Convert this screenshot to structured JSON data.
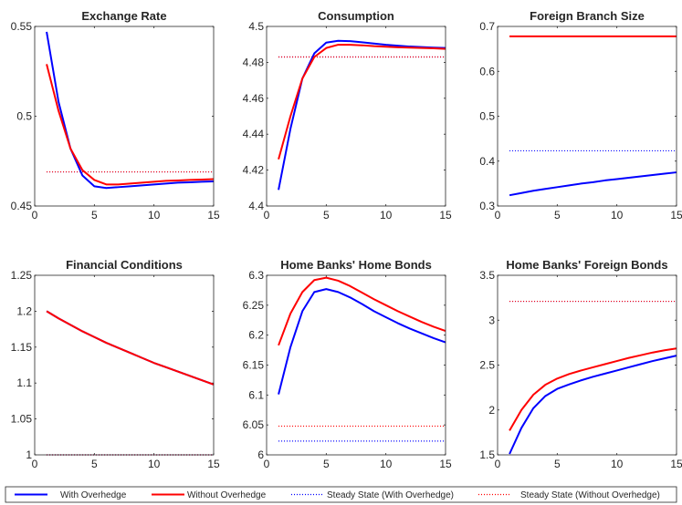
{
  "legend": {
    "entries": [
      {
        "label": "With Overhedge",
        "color": "#0000ff",
        "style": "solid"
      },
      {
        "label": "Without Overhedge",
        "color": "#ff0000",
        "style": "solid"
      },
      {
        "label": "Steady State (With Overhedge)",
        "color": "#0000ff",
        "style": "dotted"
      },
      {
        "label": "Steady State (Without Overhedge)",
        "color": "#ff0000",
        "style": "dotted"
      }
    ]
  },
  "chart_data": [
    {
      "type": "line",
      "title": "Exchange Rate",
      "xlim": [
        0,
        15
      ],
      "ylim": [
        0.45,
        0.55
      ],
      "xticks": [
        0,
        5,
        10,
        15
      ],
      "xtick_labels": [
        "0",
        "5",
        "10",
        "15"
      ],
      "yticks": [
        0.45,
        0.5,
        0.55
      ],
      "ytick_labels": [
        "0.45",
        "0.5",
        "0.55"
      ],
      "x": [
        1,
        2,
        3,
        4,
        5,
        6,
        7,
        8,
        9,
        10,
        11,
        12,
        13,
        14,
        15
      ],
      "series": [
        {
          "name": "With Overhedge",
          "color": "#0000ff",
          "style": "solid",
          "values": [
            0.547,
            0.508,
            0.482,
            0.467,
            0.461,
            0.46,
            0.4605,
            0.461,
            0.4615,
            0.462,
            0.4625,
            0.463,
            0.4632,
            0.4635,
            0.4637
          ]
        },
        {
          "name": "Without Overhedge",
          "color": "#ff0000",
          "style": "solid",
          "values": [
            0.529,
            0.503,
            0.482,
            0.47,
            0.4645,
            0.462,
            0.462,
            0.4625,
            0.463,
            0.4635,
            0.464,
            0.4642,
            0.4645,
            0.4647,
            0.465
          ]
        },
        {
          "name": "Steady State (With Overhedge)",
          "color": "#0000ff",
          "style": "dotted",
          "constant": 0.469
        },
        {
          "name": "Steady State (Without Overhedge)",
          "color": "#ff0000",
          "style": "dotted",
          "constant": 0.469
        }
      ]
    },
    {
      "type": "line",
      "title": "Consumption",
      "xlim": [
        0,
        15
      ],
      "ylim": [
        4.4,
        4.5
      ],
      "xticks": [
        0,
        5,
        10,
        15
      ],
      "xtick_labels": [
        "0",
        "5",
        "10",
        "15"
      ],
      "yticks": [
        4.4,
        4.42,
        4.44,
        4.46,
        4.48,
        4.5
      ],
      "ytick_labels": [
        "4.4",
        "4.42",
        "4.44",
        "4.46",
        "4.48",
        "4.5"
      ],
      "x": [
        1,
        2,
        3,
        4,
        5,
        6,
        7,
        8,
        9,
        10,
        11,
        12,
        13,
        14,
        15
      ],
      "series": [
        {
          "name": "With Overhedge",
          "color": "#0000ff",
          "style": "solid",
          "values": [
            4.409,
            4.443,
            4.471,
            4.485,
            4.491,
            4.492,
            4.4918,
            4.4912,
            4.4905,
            4.4898,
            4.4893,
            4.4888,
            4.4885,
            4.4882,
            4.488
          ]
        },
        {
          "name": "Without Overhedge",
          "color": "#ff0000",
          "style": "solid",
          "values": [
            4.426,
            4.45,
            4.471,
            4.483,
            4.488,
            4.4898,
            4.4898,
            4.4895,
            4.489,
            4.4887,
            4.4884,
            4.4882,
            4.488,
            4.4878,
            4.4875
          ]
        },
        {
          "name": "Steady State (With Overhedge)",
          "color": "#0000ff",
          "style": "dotted",
          "constant": 4.483
        },
        {
          "name": "Steady State (Without Overhedge)",
          "color": "#ff0000",
          "style": "dotted",
          "constant": 4.483
        }
      ]
    },
    {
      "type": "line",
      "title": "Foreign Branch Size",
      "xlim": [
        0,
        15
      ],
      "ylim": [
        0.3,
        0.7
      ],
      "xticks": [
        0,
        5,
        10,
        15
      ],
      "xtick_labels": [
        "0",
        "5",
        "10",
        "15"
      ],
      "yticks": [
        0.3,
        0.4,
        0.5,
        0.6,
        0.7
      ],
      "ytick_labels": [
        "0.3",
        "0.4",
        "0.5",
        "0.6",
        "0.7"
      ],
      "x": [
        1,
        2,
        3,
        4,
        5,
        6,
        7,
        8,
        9,
        10,
        11,
        12,
        13,
        14,
        15
      ],
      "series": [
        {
          "name": "With Overhedge",
          "color": "#0000ff",
          "style": "solid",
          "values": [
            0.324,
            0.329,
            0.334,
            0.338,
            0.342,
            0.346,
            0.35,
            0.353,
            0.357,
            0.36,
            0.363,
            0.366,
            0.369,
            0.372,
            0.375
          ]
        },
        {
          "name": "Without Overhedge",
          "color": "#ff0000",
          "style": "solid",
          "values": [
            0.678,
            0.678,
            0.678,
            0.678,
            0.678,
            0.678,
            0.678,
            0.678,
            0.678,
            0.678,
            0.678,
            0.678,
            0.678,
            0.678,
            0.678
          ]
        },
        {
          "name": "Steady State (With Overhedge)",
          "color": "#0000ff",
          "style": "dotted",
          "constant": 0.423
        },
        {
          "name": "Steady State (Without Overhedge)",
          "color": "#ff0000",
          "style": "dotted",
          "constant": 0.678
        }
      ]
    },
    {
      "type": "line",
      "title": "Financial Conditions",
      "xlim": [
        0,
        15
      ],
      "ylim": [
        1.0,
        1.25
      ],
      "xticks": [
        0,
        5,
        10,
        15
      ],
      "xtick_labels": [
        "0",
        "5",
        "10",
        "15"
      ],
      "yticks": [
        1.0,
        1.05,
        1.1,
        1.15,
        1.2,
        1.25
      ],
      "ytick_labels": [
        "1",
        "1.05",
        "1.1",
        "1.15",
        "1.2",
        "1.25"
      ],
      "x": [
        1,
        2,
        3,
        4,
        5,
        6,
        7,
        8,
        9,
        10,
        11,
        12,
        13,
        14,
        15
      ],
      "series": [
        {
          "name": "With Overhedge",
          "color": "#0000ff",
          "style": "solid",
          "values": [
            1.2,
            1.19,
            1.181,
            1.172,
            1.164,
            1.156,
            1.149,
            1.142,
            1.135,
            1.128,
            1.122,
            1.116,
            1.11,
            1.104,
            1.098
          ]
        },
        {
          "name": "Without Overhedge",
          "color": "#ff0000",
          "style": "solid",
          "values": [
            1.2,
            1.19,
            1.181,
            1.172,
            1.164,
            1.156,
            1.149,
            1.142,
            1.135,
            1.128,
            1.122,
            1.116,
            1.11,
            1.104,
            1.098
          ]
        },
        {
          "name": "Steady State (With Overhedge)",
          "color": "#0000ff",
          "style": "dotted",
          "constant": 1.0
        },
        {
          "name": "Steady State (Without Overhedge)",
          "color": "#ff0000",
          "style": "dotted",
          "constant": 1.0
        }
      ]
    },
    {
      "type": "line",
      "title": "Home Banks' Home Bonds",
      "xlim": [
        0,
        15
      ],
      "ylim": [
        6.0,
        6.3
      ],
      "xticks": [
        0,
        5,
        10,
        15
      ],
      "xtick_labels": [
        "0",
        "5",
        "10",
        "15"
      ],
      "yticks": [
        6.0,
        6.05,
        6.1,
        6.15,
        6.2,
        6.25,
        6.3
      ],
      "ytick_labels": [
        "6",
        "6.05",
        "6.1",
        "6.15",
        "6.2",
        "6.25",
        "6.3"
      ],
      "x": [
        1,
        2,
        3,
        4,
        5,
        6,
        7,
        8,
        9,
        10,
        11,
        12,
        13,
        14,
        15
      ],
      "series": [
        {
          "name": "With Overhedge",
          "color": "#0000ff",
          "style": "solid",
          "values": [
            6.101,
            6.18,
            6.24,
            6.272,
            6.277,
            6.272,
            6.263,
            6.252,
            6.24,
            6.23,
            6.22,
            6.211,
            6.203,
            6.195,
            6.188
          ]
        },
        {
          "name": "Without Overhedge",
          "color": "#ff0000",
          "style": "solid",
          "values": [
            6.183,
            6.236,
            6.272,
            6.292,
            6.296,
            6.291,
            6.282,
            6.271,
            6.26,
            6.25,
            6.24,
            6.231,
            6.222,
            6.214,
            6.207
          ]
        },
        {
          "name": "Steady State (With Overhedge)",
          "color": "#0000ff",
          "style": "dotted",
          "constant": 6.023
        },
        {
          "name": "Steady State (Without Overhedge)",
          "color": "#ff0000",
          "style": "dotted",
          "constant": 6.048
        }
      ]
    },
    {
      "type": "line",
      "title": "Home Banks' Foreign Bonds",
      "xlim": [
        0,
        15
      ],
      "ylim": [
        1.5,
        3.5
      ],
      "xticks": [
        0,
        5,
        10,
        15
      ],
      "xtick_labels": [
        "0",
        "5",
        "10",
        "15"
      ],
      "yticks": [
        1.5,
        2,
        2.5,
        3,
        3.5
      ],
      "ytick_labels": [
        "1.5",
        "2",
        "2.5",
        "3",
        "3.5"
      ],
      "x": [
        1,
        2,
        3,
        4,
        5,
        6,
        7,
        8,
        9,
        10,
        11,
        12,
        13,
        14,
        15
      ],
      "series": [
        {
          "name": "With Overhedge",
          "color": "#0000ff",
          "style": "solid",
          "values": [
            1.51,
            1.8,
            2.02,
            2.155,
            2.235,
            2.285,
            2.33,
            2.37,
            2.405,
            2.44,
            2.475,
            2.51,
            2.545,
            2.575,
            2.605
          ]
        },
        {
          "name": "Without Overhedge",
          "color": "#ff0000",
          "style": "solid",
          "values": [
            1.77,
            2.0,
            2.17,
            2.28,
            2.35,
            2.4,
            2.44,
            2.475,
            2.51,
            2.545,
            2.58,
            2.61,
            2.64,
            2.665,
            2.685
          ]
        },
        {
          "name": "Steady State (With Overhedge)",
          "color": "#0000ff",
          "style": "dotted",
          "constant": 3.21
        },
        {
          "name": "Steady State (Without Overhedge)",
          "color": "#ff0000",
          "style": "dotted",
          "constant": 3.21
        }
      ]
    }
  ]
}
